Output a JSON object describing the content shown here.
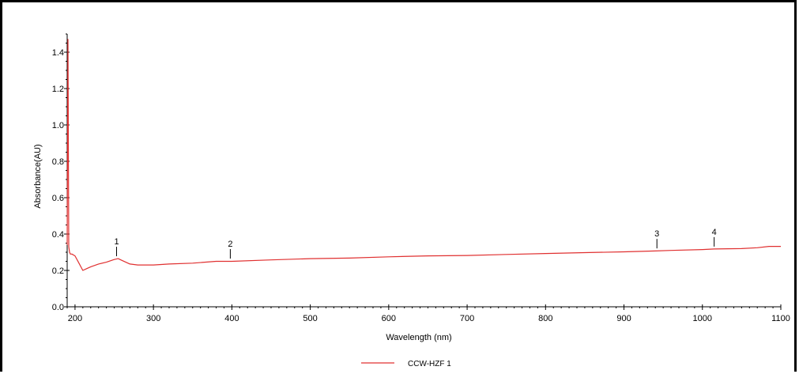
{
  "chart_data": {
    "type": "line",
    "title": "",
    "xlabel": "Wavelength (nm)",
    "ylabel": "Absorbance(AU)",
    "xlim": [
      190,
      1100
    ],
    "ylim": [
      0.0,
      1.5
    ],
    "x_ticks": [
      200,
      300,
      400,
      500,
      600,
      700,
      800,
      900,
      1000,
      1100
    ],
    "x_tick_labels": [
      "200",
      "300",
      "400",
      "500",
      "600",
      "700",
      "800",
      "900",
      "1000",
      "1100"
    ],
    "y_ticks": [
      0.0,
      0.2,
      0.4,
      0.6,
      0.8,
      1.0,
      1.2,
      1.4
    ],
    "y_tick_labels": [
      "0.0",
      "0.2",
      "0.4",
      "0.6",
      "0.8",
      "1.0",
      "1.2",
      "1.4"
    ],
    "grid": false,
    "legend_position": "bottom-center",
    "series": [
      {
        "name": "CCW-HZF 1",
        "color": "#e03030",
        "x": [
          190,
          191,
          192,
          193,
          194,
          196,
          200,
          205,
          210,
          215,
          220,
          230,
          240,
          250,
          255,
          260,
          270,
          280,
          300,
          320,
          350,
          380,
          400,
          450,
          500,
          550,
          600,
          650,
          700,
          750,
          800,
          850,
          900,
          940,
          960,
          1000,
          1015,
          1050,
          1070,
          1085,
          1100
        ],
        "y": [
          0.34,
          1.47,
          0.33,
          0.3,
          0.29,
          0.29,
          0.28,
          0.24,
          0.2,
          0.21,
          0.22,
          0.235,
          0.245,
          0.26,
          0.265,
          0.255,
          0.235,
          0.23,
          0.23,
          0.235,
          0.24,
          0.25,
          0.25,
          0.258,
          0.265,
          0.268,
          0.275,
          0.28,
          0.282,
          0.288,
          0.293,
          0.298,
          0.302,
          0.307,
          0.31,
          0.315,
          0.318,
          0.32,
          0.325,
          0.332,
          0.332
        ]
      }
    ],
    "annotations": [
      {
        "label": "1",
        "x": 253,
        "y": 0.265
      },
      {
        "label": "2",
        "x": 398,
        "y": 0.252
      },
      {
        "label": "3",
        "x": 942,
        "y": 0.308
      },
      {
        "label": "4",
        "x": 1015,
        "y": 0.318
      }
    ]
  }
}
